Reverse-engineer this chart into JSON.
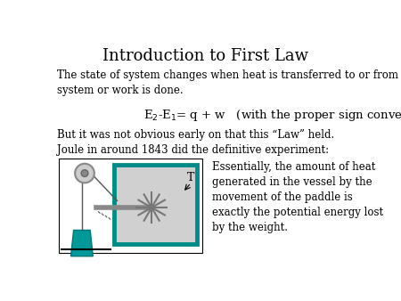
{
  "title": "Introduction to First Law",
  "title_fontsize": 13,
  "body_fontsize": 8.5,
  "equation_fontsize": 9.5,
  "para1": "The state of system changes when heat is transferred to or from the\nsystem or work is done.",
  "para2_line1": "But it was not obvious early on that this “Law” held.",
  "para2_line2": "Joule in around 1843 did the definitive experiment:",
  "side_text": "Essentially, the amount of heat\ngenerated in the vessel by the\nmovement of the paddle is\nexactly the potential energy lost\nby the weight.",
  "background_color": "#ffffff",
  "text_color": "#000000",
  "teal_color": "#008B8B",
  "gray_fill": "#d0d0d0",
  "bucket_color": "#00999A"
}
